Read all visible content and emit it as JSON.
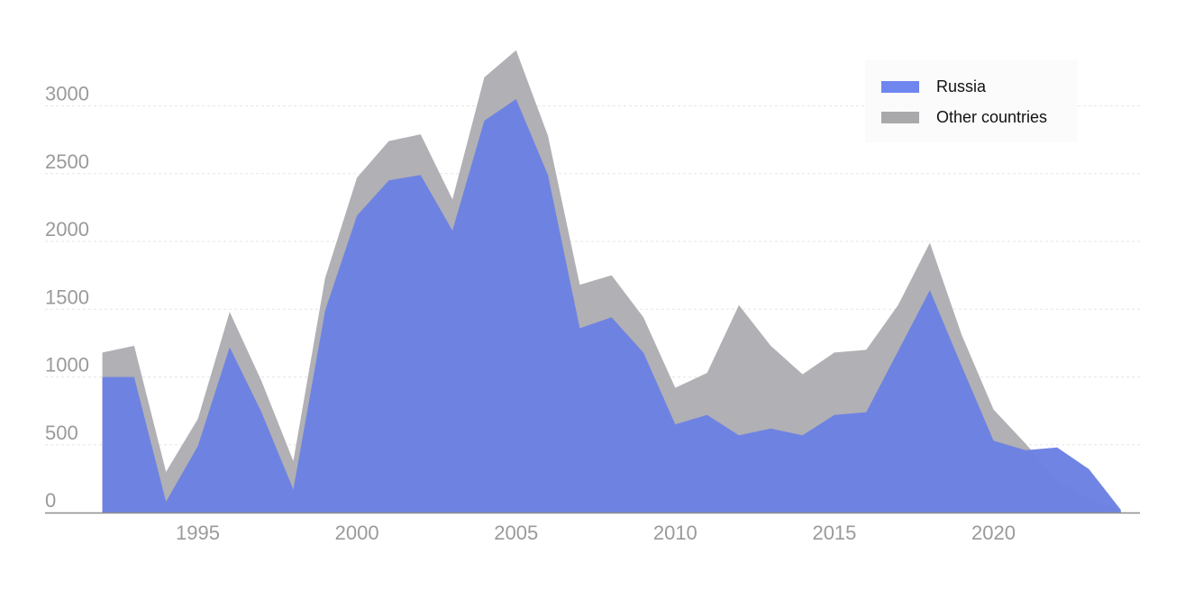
{
  "chart_data": {
    "type": "area",
    "stacked": true,
    "x": [
      1992,
      1993,
      1994,
      1995,
      1996,
      1997,
      1998,
      1999,
      2000,
      2001,
      2002,
      2003,
      2004,
      2005,
      2006,
      2007,
      2008,
      2009,
      2010,
      2011,
      2012,
      2013,
      2014,
      2015,
      2016,
      2017,
      2018,
      2019,
      2020,
      2021,
      2022,
      2023,
      2024
    ],
    "series": [
      {
        "name": "Russia",
        "color": "#6b81e2",
        "values": [
          1000,
          1000,
          80,
          490,
          1220,
          740,
          170,
          1490,
          2190,
          2450,
          2490,
          2080,
          2890,
          3050,
          2490,
          1360,
          1440,
          1180,
          650,
          720,
          570,
          620,
          570,
          720,
          740,
          1190,
          1640,
          1080,
          530,
          460,
          480,
          320,
          20
        ]
      },
      {
        "name": "Other countries",
        "color": "#b1b0b5",
        "values": [
          180,
          230,
          220,
          200,
          260,
          230,
          210,
          240,
          280,
          290,
          300,
          230,
          320,
          360,
          290,
          320,
          310,
          260,
          270,
          310,
          960,
          610,
          450,
          460,
          460,
          340,
          350,
          230,
          230,
          50,
          -240,
          -220,
          -10
        ]
      }
    ],
    "y_ticks": [
      0,
      500,
      1000,
      1500,
      2000,
      2500,
      3000
    ],
    "x_ticks": [
      1995,
      2000,
      2005,
      2010,
      2015,
      2020
    ],
    "x_range": [
      1990.2,
      2024.6
    ],
    "ylim": [
      0,
      3500
    ],
    "grid": true,
    "grid_color": "#e6e6e6",
    "axis_color": "#8e8e8e",
    "legend_position": "top-right"
  },
  "legend": {
    "items": [
      {
        "label": "Russia",
        "color": "#6f86ef"
      },
      {
        "label": "Other countries",
        "color": "#a9a9ab"
      }
    ]
  }
}
